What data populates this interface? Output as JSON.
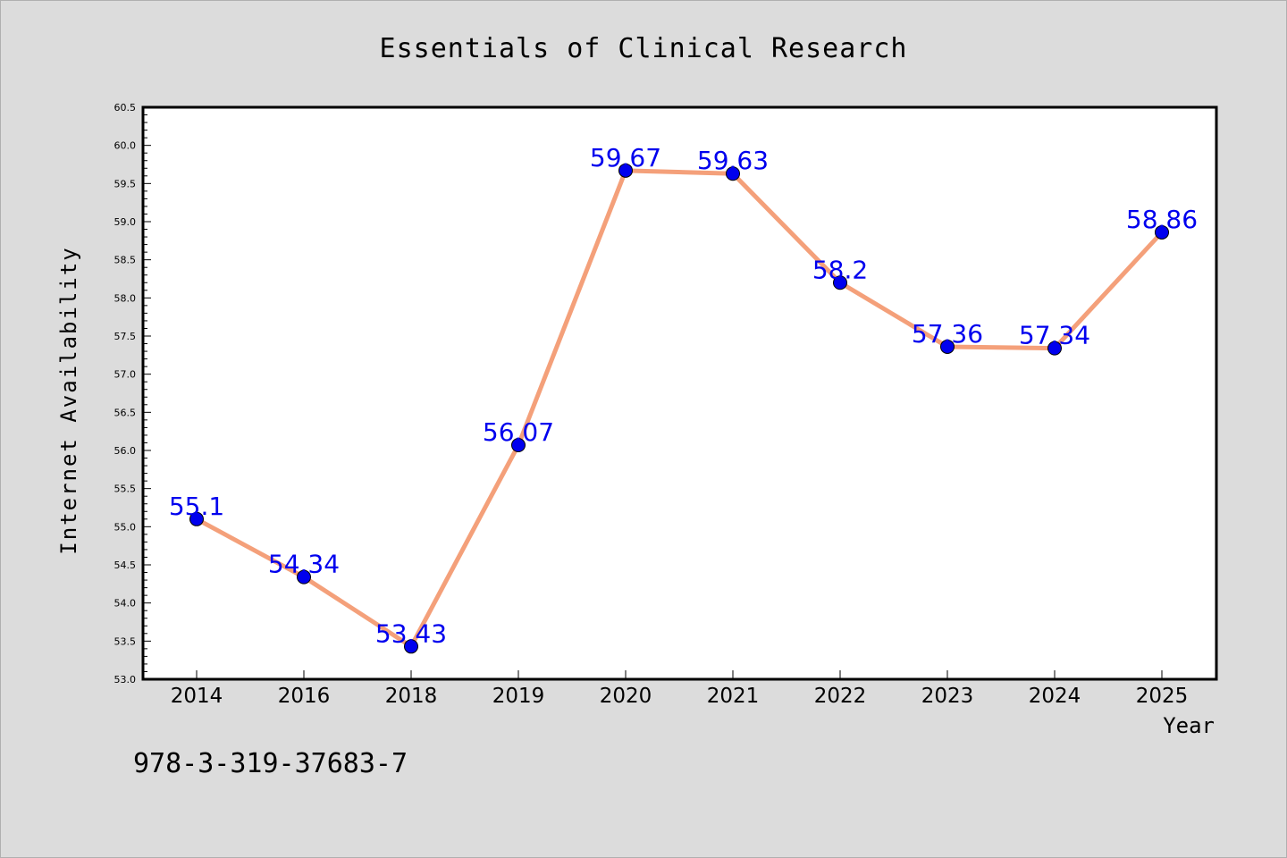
{
  "chart_data": {
    "type": "line",
    "title": "Essentials of Clinical Research",
    "xlabel": "Year",
    "ylabel": "Internet Availability",
    "categories": [
      "2014",
      "2016",
      "2018",
      "2019",
      "2020",
      "2021",
      "2022",
      "2023",
      "2024",
      "2025"
    ],
    "series": [
      {
        "values": [
          55.1,
          54.34,
          53.43,
          56.07,
          59.67,
          59.63,
          58.2,
          57.36,
          57.34,
          58.86
        ],
        "data_labels": [
          "55.1",
          "54.34",
          "53.43",
          "56.07",
          "59.67",
          "59.63",
          "58.2",
          "57.36",
          "57.34",
          "58.86"
        ]
      }
    ],
    "ylim": [
      53.0,
      60.5
    ],
    "yticks": [
      "53.0",
      "53.5",
      "54.0",
      "54.5",
      "55.0",
      "55.5",
      "56.0",
      "56.5",
      "57.0",
      "57.5",
      "58.0",
      "58.5",
      "59.0",
      "59.5",
      "60.0",
      "60.5"
    ],
    "grid": false,
    "colors": {
      "line": "#f4a07a",
      "marker": "#0000ee",
      "label": "#0000ee",
      "background": "#dcdcdc",
      "plot_background": "#ffffff",
      "axis": "#000000"
    },
    "annotations": [
      {
        "text": "978-3-319-37683-7"
      }
    ]
  }
}
